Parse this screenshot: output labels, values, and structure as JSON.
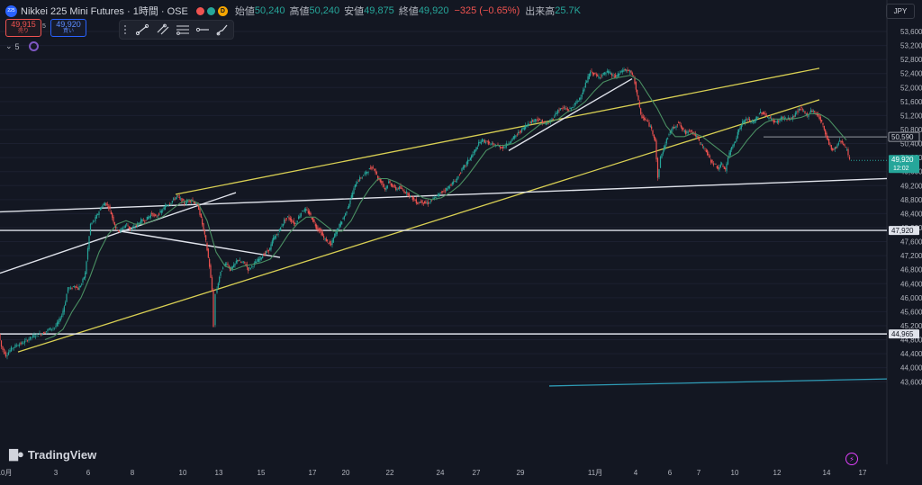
{
  "header": {
    "symbol_icon": "225",
    "title": "Nikkei 225 Mini Futures · 1時間 · OSE",
    "open_label": "始値",
    "open": "50,240",
    "high_label": "高値",
    "high": "50,240",
    "low_label": "安値",
    "low": "49,875",
    "close_label": "終値",
    "close": "49,920",
    "change": "−325 (−0.65%)",
    "volume_label": "出来高",
    "volume": "25.7K",
    "status_badge": "D",
    "dot_colors": [
      "#ef5350",
      "#26a69a"
    ]
  },
  "trade": {
    "sell_price": "49,915",
    "sell_label": "売り",
    "spread": "5",
    "buy_price": "49,920",
    "buy_label": "買い"
  },
  "indicators": {
    "count": "5"
  },
  "toolbar": {
    "tools": [
      "trendline-icon",
      "parallel-channel-icon",
      "fib-icon",
      "ray-icon",
      "brush-icon"
    ]
  },
  "currency": "JPY",
  "brand": "TradingView",
  "colors": {
    "background": "#131722",
    "up": "#26a69a",
    "down": "#ef5350",
    "ma": "#4a8f62",
    "channel": "#d8cf53",
    "lines": "#e0e3eb",
    "teal_line": "#2e9bb5"
  },
  "chart_data": {
    "type": "candlestick",
    "y_ticks": [
      "53,600",
      "53,200",
      "52,800",
      "52,400",
      "52,000",
      "51,600",
      "51,200",
      "50,800",
      "50,400",
      "50,000",
      "49,600",
      "49,200",
      "48,800",
      "48,400",
      "48,000",
      "47,600",
      "47,200",
      "46,800",
      "46,400",
      "46,000",
      "45,600",
      "45,200",
      "44,800",
      "44,400",
      "44,000",
      "43,600"
    ],
    "x_ticks": [
      "10月",
      "3",
      "6",
      "8",
      "10",
      "13",
      "15",
      "17",
      "20",
      "22",
      "24",
      "27",
      "29",
      "11月",
      "4",
      "6",
      "7",
      "10",
      "12",
      "14",
      "17"
    ],
    "price_labels": [
      {
        "value": "50,590",
        "style": "gray"
      },
      {
        "value": "49,920",
        "countdown": "12:02",
        "style": "current"
      },
      {
        "value": "47,920",
        "style": "white"
      },
      {
        "value": "44,965",
        "style": "white"
      }
    ],
    "candle_path": [
      [
        0,
        44965
      ],
      [
        3,
        44600
      ],
      [
        8,
        44350
      ],
      [
        14,
        44550
      ],
      [
        20,
        44650
      ],
      [
        26,
        44700
      ],
      [
        32,
        44800
      ],
      [
        38,
        44900
      ],
      [
        44,
        44950
      ],
      [
        50,
        45000
      ],
      [
        56,
        45100
      ],
      [
        62,
        45150
      ],
      [
        66,
        45300
      ],
      [
        70,
        45500
      ],
      [
        74,
        45900
      ],
      [
        77,
        46300
      ],
      [
        80,
        46250
      ],
      [
        84,
        46350
      ],
      [
        88,
        46250
      ],
      [
        92,
        46400
      ],
      [
        96,
        46700
      ],
      [
        99,
        47400
      ],
      [
        102,
        48100
      ],
      [
        106,
        48200
      ],
      [
        110,
        48400
      ],
      [
        114,
        48600
      ],
      [
        118,
        48700
      ],
      [
        122,
        48600
      ],
      [
        126,
        48300
      ],
      [
        130,
        48000
      ],
      [
        134,
        47900
      ],
      [
        138,
        48000
      ],
      [
        142,
        48100
      ],
      [
        146,
        47950
      ],
      [
        150,
        48000
      ],
      [
        154,
        48100
      ],
      [
        158,
        48200
      ],
      [
        162,
        48200
      ],
      [
        166,
        48300
      ],
      [
        170,
        48400
      ],
      [
        174,
        48300
      ],
      [
        178,
        48400
      ],
      [
        182,
        48500
      ],
      [
        186,
        48650
      ],
      [
        190,
        48700
      ],
      [
        194,
        48800
      ],
      [
        198,
        48900
      ],
      [
        202,
        48800
      ],
      [
        206,
        48700
      ],
      [
        210,
        48750
      ],
      [
        214,
        48800
      ],
      [
        218,
        48700
      ],
      [
        222,
        48550
      ],
      [
        226,
        48100
      ],
      [
        230,
        47600
      ],
      [
        234,
        46900
      ],
      [
        237,
        46200
      ],
      [
        239,
        45200
      ],
      [
        241,
        46100
      ],
      [
        245,
        46600
      ],
      [
        249,
        46900
      ],
      [
        253,
        47000
      ],
      [
        257,
        46800
      ],
      [
        261,
        46900
      ],
      [
        265,
        47100
      ],
      [
        269,
        47000
      ],
      [
        273,
        47000
      ],
      [
        277,
        46800
      ],
      [
        281,
        46900
      ],
      [
        285,
        47000
      ],
      [
        289,
        47100
      ],
      [
        293,
        47200
      ],
      [
        297,
        47300
      ],
      [
        301,
        47400
      ],
      [
        305,
        47700
      ],
      [
        309,
        47800
      ],
      [
        313,
        48000
      ],
      [
        317,
        48200
      ],
      [
        321,
        48300
      ],
      [
        325,
        48200
      ],
      [
        329,
        48100
      ],
      [
        333,
        48300
      ],
      [
        337,
        48500
      ],
      [
        341,
        48500
      ],
      [
        345,
        48400
      ],
      [
        349,
        48200
      ],
      [
        353,
        48000
      ],
      [
        357,
        47900
      ],
      [
        361,
        47700
      ],
      [
        365,
        47600
      ],
      [
        369,
        47500
      ],
      [
        373,
        47800
      ],
      [
        377,
        48000
      ],
      [
        381,
        48200
      ],
      [
        385,
        48400
      ],
      [
        389,
        48700
      ],
      [
        393,
        49000
      ],
      [
        397,
        49300
      ],
      [
        401,
        49400
      ],
      [
        405,
        49500
      ],
      [
        409,
        49600
      ],
      [
        413,
        49700
      ],
      [
        417,
        49700
      ],
      [
        421,
        49400
      ],
      [
        425,
        49300
      ],
      [
        429,
        49100
      ],
      [
        433,
        49300
      ],
      [
        437,
        49200
      ],
      [
        441,
        49100
      ],
      [
        445,
        49150
      ],
      [
        449,
        49050
      ],
      [
        453,
        49000
      ],
      [
        457,
        48900
      ],
      [
        461,
        48800
      ],
      [
        465,
        48700
      ],
      [
        469,
        48750
      ],
      [
        473,
        48700
      ],
      [
        477,
        48700
      ],
      [
        481,
        48800
      ],
      [
        485,
        48850
      ],
      [
        489,
        48950
      ],
      [
        493,
        49050
      ],
      [
        497,
        49100
      ],
      [
        501,
        49200
      ],
      [
        505,
        49300
      ],
      [
        509,
        49400
      ],
      [
        513,
        49600
      ],
      [
        517,
        49750
      ],
      [
        521,
        49900
      ],
      [
        525,
        50050
      ],
      [
        529,
        50200
      ],
      [
        533,
        50400
      ],
      [
        537,
        50500
      ],
      [
        541,
        50450
      ],
      [
        545,
        50400
      ],
      [
        549,
        50350
      ],
      [
        553,
        50350
      ],
      [
        557,
        50300
      ],
      [
        561,
        50300
      ],
      [
        565,
        50400
      ],
      [
        569,
        50500
      ],
      [
        573,
        50600
      ],
      [
        577,
        50700
      ],
      [
        581,
        50800
      ],
      [
        585,
        50900
      ],
      [
        589,
        51000
      ],
      [
        593,
        51050
      ],
      [
        597,
        51100
      ],
      [
        601,
        51050
      ],
      [
        605,
        51000
      ],
      [
        609,
        50950
      ],
      [
        613,
        51050
      ],
      [
        617,
        51200
      ],
      [
        621,
        51350
      ],
      [
        625,
        51400
      ],
      [
        629,
        51400
      ],
      [
        633,
        51350
      ],
      [
        637,
        51450
      ],
      [
        641,
        51550
      ],
      [
        645,
        51700
      ],
      [
        649,
        51900
      ],
      [
        653,
        52200
      ],
      [
        657,
        52450
      ],
      [
        661,
        52400
      ],
      [
        665,
        52300
      ],
      [
        669,
        52350
      ],
      [
        673,
        52400
      ],
      [
        677,
        52450
      ],
      [
        681,
        52350
      ],
      [
        685,
        52300
      ],
      [
        689,
        52400
      ],
      [
        693,
        52500
      ],
      [
        697,
        52500
      ],
      [
        701,
        52450
      ],
      [
        705,
        52300
      ],
      [
        709,
        51800
      ],
      [
        713,
        51200
      ],
      [
        717,
        51100
      ],
      [
        721,
        51000
      ],
      [
        725,
        50800
      ],
      [
        729,
        50500
      ],
      [
        732,
        49400
      ],
      [
        735,
        50000
      ],
      [
        739,
        50300
      ],
      [
        743,
        50600
      ],
      [
        747,
        50800
      ],
      [
        751,
        50900
      ],
      [
        755,
        51000
      ],
      [
        759,
        50800
      ],
      [
        763,
        50700
      ],
      [
        767,
        50800
      ],
      [
        771,
        50700
      ],
      [
        775,
        50600
      ],
      [
        779,
        50400
      ],
      [
        783,
        50300
      ],
      [
        787,
        50100
      ],
      [
        791,
        49900
      ],
      [
        795,
        49800
      ],
      [
        799,
        49700
      ],
      [
        803,
        49800
      ],
      [
        807,
        49650
      ],
      [
        810,
        50000
      ],
      [
        814,
        50300
      ],
      [
        818,
        50500
      ],
      [
        822,
        50800
      ],
      [
        826,
        51000
      ],
      [
        830,
        51100
      ],
      [
        834,
        51050
      ],
      [
        838,
        51000
      ],
      [
        842,
        51150
      ],
      [
        846,
        51300
      ],
      [
        850,
        51250
      ],
      [
        854,
        51150
      ],
      [
        858,
        51100
      ],
      [
        862,
        51000
      ],
      [
        866,
        51050
      ],
      [
        870,
        51150
      ],
      [
        874,
        51100
      ],
      [
        878,
        51100
      ],
      [
        882,
        51150
      ],
      [
        886,
        51300
      ],
      [
        890,
        51400
      ],
      [
        894,
        51300
      ],
      [
        898,
        51200
      ],
      [
        902,
        51350
      ],
      [
        906,
        51300
      ],
      [
        910,
        51200
      ],
      [
        914,
        51000
      ],
      [
        918,
        50700
      ],
      [
        922,
        50400
      ],
      [
        926,
        50200
      ],
      [
        930,
        50300
      ],
      [
        934,
        50500
      ],
      [
        938,
        50400
      ],
      [
        942,
        50200
      ],
      [
        945,
        49920
      ]
    ],
    "ma_path": [
      [
        50,
        44800
      ],
      [
        60,
        44900
      ],
      [
        70,
        45100
      ],
      [
        80,
        45600
      ],
      [
        90,
        46000
      ],
      [
        100,
        46600
      ],
      [
        110,
        47300
      ],
      [
        120,
        47800
      ],
      [
        130,
        48100
      ],
      [
        140,
        48200
      ],
      [
        150,
        48100
      ],
      [
        160,
        48100
      ],
      [
        170,
        48200
      ],
      [
        180,
        48300
      ],
      [
        190,
        48500
      ],
      [
        200,
        48700
      ],
      [
        210,
        48800
      ],
      [
        220,
        48700
      ],
      [
        230,
        48200
      ],
      [
        240,
        47300
      ],
      [
        250,
        46900
      ],
      [
        260,
        46800
      ],
      [
        270,
        46900
      ],
      [
        280,
        46950
      ],
      [
        290,
        47000
      ],
      [
        300,
        47100
      ],
      [
        310,
        47400
      ],
      [
        320,
        47800
      ],
      [
        330,
        48100
      ],
      [
        340,
        48300
      ],
      [
        350,
        48300
      ],
      [
        360,
        48100
      ],
      [
        370,
        47900
      ],
      [
        380,
        47900
      ],
      [
        390,
        48200
      ],
      [
        400,
        48700
      ],
      [
        410,
        49100
      ],
      [
        420,
        49400
      ],
      [
        430,
        49400
      ],
      [
        440,
        49300
      ],
      [
        450,
        49150
      ],
      [
        460,
        49000
      ],
      [
        470,
        48850
      ],
      [
        480,
        48800
      ],
      [
        490,
        48850
      ],
      [
        500,
        49000
      ],
      [
        510,
        49200
      ],
      [
        520,
        49500
      ],
      [
        530,
        49850
      ],
      [
        540,
        50200
      ],
      [
        550,
        50350
      ],
      [
        560,
        50350
      ],
      [
        570,
        50400
      ],
      [
        580,
        50550
      ],
      [
        590,
        50750
      ],
      [
        600,
        50950
      ],
      [
        610,
        51000
      ],
      [
        620,
        51100
      ],
      [
        630,
        51300
      ],
      [
        640,
        51400
      ],
      [
        650,
        51600
      ],
      [
        660,
        51900
      ],
      [
        670,
        52150
      ],
      [
        680,
        52250
      ],
      [
        690,
        52300
      ],
      [
        700,
        52350
      ],
      [
        710,
        52200
      ],
      [
        720,
        51800
      ],
      [
        730,
        51400
      ],
      [
        740,
        50900
      ],
      [
        750,
        50600
      ],
      [
        760,
        50600
      ],
      [
        770,
        50700
      ],
      [
        780,
        50600
      ],
      [
        790,
        50400
      ],
      [
        800,
        50200
      ],
      [
        810,
        50000
      ],
      [
        820,
        50150
      ],
      [
        830,
        50500
      ],
      [
        840,
        50800
      ],
      [
        850,
        51000
      ],
      [
        860,
        51100
      ],
      [
        870,
        51100
      ],
      [
        880,
        51100
      ],
      [
        890,
        51150
      ],
      [
        900,
        51250
      ],
      [
        910,
        51250
      ],
      [
        920,
        51100
      ],
      [
        930,
        50800
      ],
      [
        940,
        50500
      ]
    ],
    "drawings": [
      {
        "kind": "channel_upper",
        "from": [
          195,
          48950
        ],
        "to": [
          910,
          52550
        ]
      },
      {
        "kind": "channel_lower",
        "from": [
          20,
          44450
        ],
        "to": [
          910,
          51650
        ]
      },
      {
        "kind": "line",
        "from": [
          0,
          48450
        ],
        "to": [
          985,
          49400
        ]
      },
      {
        "kind": "hline",
        "from": [
          0,
          47920
        ],
        "to": [
          985,
          47920
        ]
      },
      {
        "kind": "hline",
        "from": [
          0,
          44965
        ],
        "to": [
          985,
          44965
        ]
      },
      {
        "kind": "line",
        "from": [
          0,
          46700
        ],
        "to": [
          262,
          49000
        ]
      },
      {
        "kind": "line",
        "from": [
          133,
          47900
        ],
        "to": [
          311,
          47150
        ]
      },
      {
        "kind": "line",
        "from": [
          565,
          50200
        ],
        "to": [
          702,
          52250
        ]
      },
      {
        "kind": "hline_short",
        "from": [
          848,
          50590
        ],
        "to": [
          985,
          50590
        ]
      },
      {
        "kind": "teal_line",
        "from": [
          610,
          43480
        ],
        "to": [
          985,
          43680
        ]
      }
    ]
  }
}
